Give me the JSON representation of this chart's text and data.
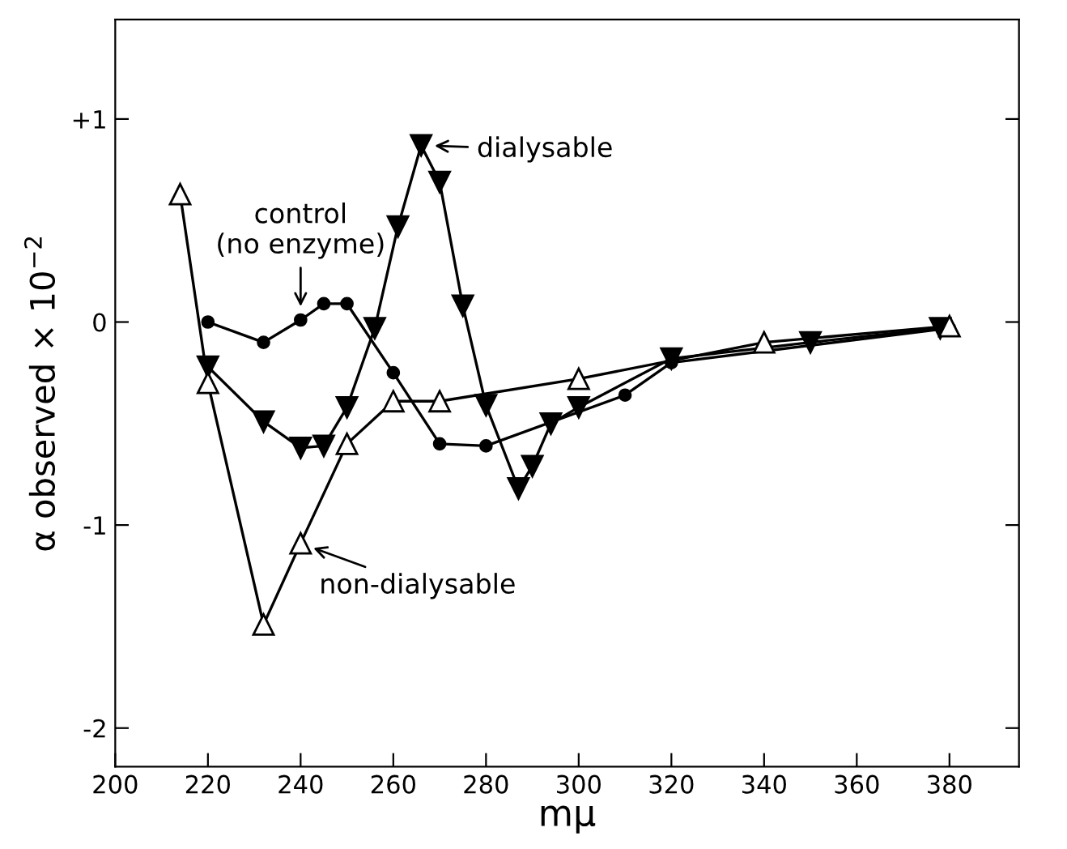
{
  "chart_data": {
    "type": "line",
    "xlabel": "mμ",
    "ylabel": "α observed × 10$^{−2}$",
    "xlim": [
      200,
      395
    ],
    "ylim": [
      -2.19,
      1.49
    ],
    "xticks": [
      200,
      220,
      240,
      260,
      280,
      300,
      320,
      340,
      360,
      380
    ],
    "yticks": [
      {
        "value": 1,
        "label": "+1"
      },
      0,
      -1,
      -2
    ],
    "grid": false,
    "legend": "top",
    "line_style": "solid",
    "series": [
      {
        "name": "dialysable",
        "color": "#000000",
        "marker": "triangle-down",
        "x": [
          220,
          232,
          240,
          245,
          250,
          256,
          261,
          266,
          270,
          275,
          280,
          287,
          290,
          294,
          300,
          320,
          350,
          378
        ],
        "values": [
          -0.22,
          -0.49,
          -0.62,
          -0.61,
          -0.42,
          -0.03,
          0.47,
          0.87,
          0.69,
          0.08,
          -0.41,
          -0.82,
          -0.71,
          -0.5,
          -0.42,
          -0.18,
          -0.1,
          -0.03
        ]
      },
      {
        "name": "control\n(no enzyme)",
        "color": "#000000",
        "marker": "circle",
        "x": [
          220,
          232,
          240,
          245,
          250,
          260,
          270,
          280,
          310,
          320,
          380
        ],
        "values": [
          0,
          -0.1,
          0.01,
          0.09,
          0.09,
          -0.25,
          -0.6,
          -0.61,
          -0.36,
          -0.2,
          -0.03
        ]
      },
      {
        "name": "non-dialysable",
        "color": "#000000",
        "marker": "triangle",
        "x": [
          214,
          220,
          232,
          240,
          250,
          260,
          270,
          300,
          340,
          380
        ],
        "values": [
          0.63,
          -0.3,
          -1.49,
          -1.09,
          -0.6,
          -0.39,
          -0.39,
          -0.28,
          -0.1,
          -0.02
        ]
      }
    ]
  }
}
